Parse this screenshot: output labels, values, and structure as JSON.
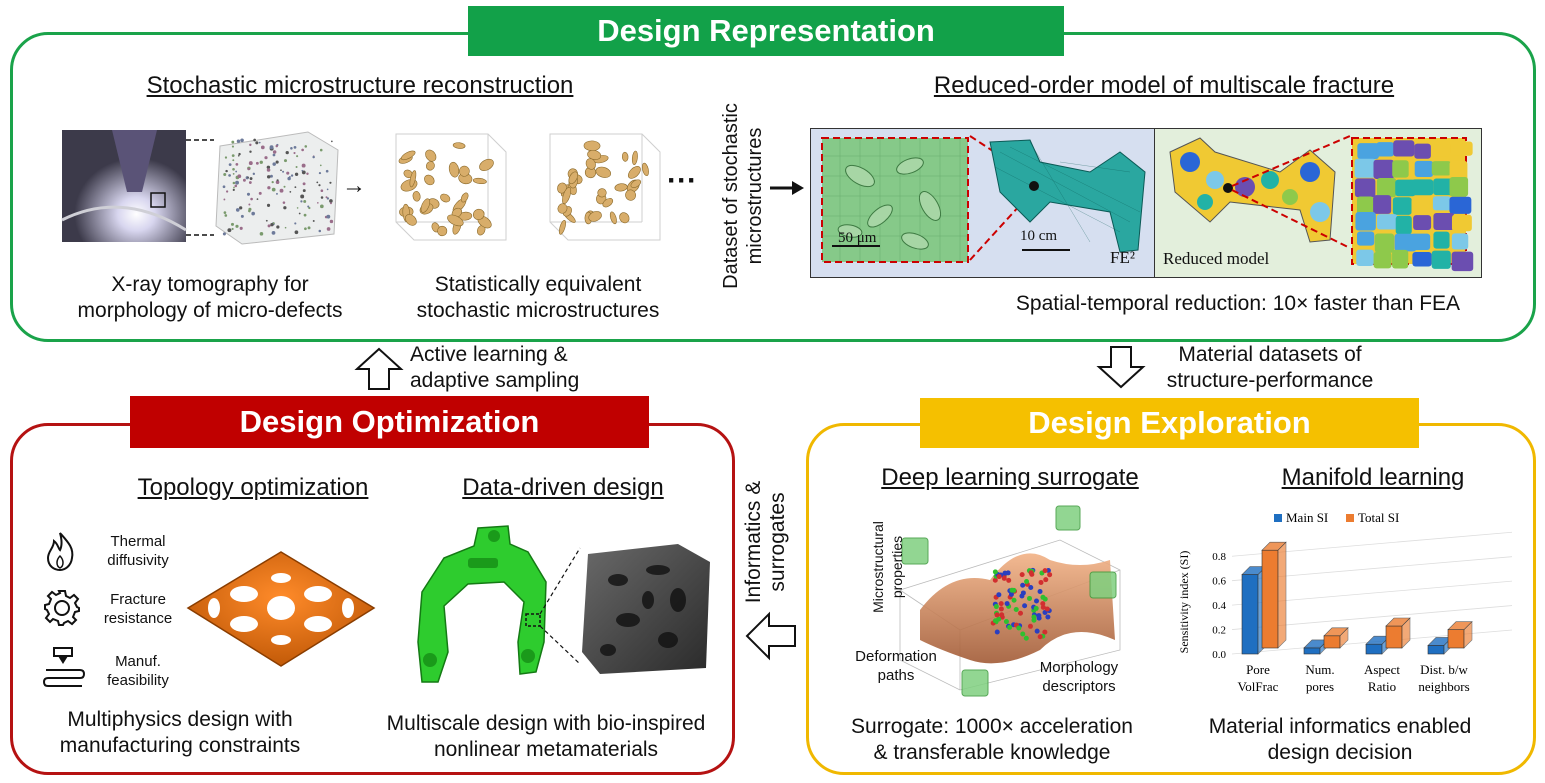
{
  "representation": {
    "title": "Design Representation",
    "stochastic_heading": "Stochastic microstructure reconstruction",
    "xray_caption_line1": "X-ray tomography for",
    "xray_caption_line2": "morphology of micro-defects",
    "stat_caption_line1": "Statistically equivalent",
    "stat_caption_line2": "stochastic microstructures",
    "arrow_symbol": "→",
    "ellipsis": "···",
    "dataset_line1": "Dataset of stochastic",
    "dataset_line2": "microstructures",
    "rom_heading": "Reduced-order model of multiscale fracture",
    "scale_micro": "50 μm",
    "scale_macro": "10 cm",
    "fe2_label": "FE²",
    "reduced_label": "Reduced model",
    "reduction_caption": "Spatial-temporal reduction: 10× faster than FEA"
  },
  "flows": {
    "active_line1": "Active learning &",
    "active_line2": "adaptive sampling",
    "material_line1": "Material datasets of",
    "material_line2": "structure-performance",
    "informatics_line1": "Informatics &",
    "informatics_line2": "surrogates"
  },
  "optimization": {
    "title": "Design Optimization",
    "topology_heading": "Topology optimization",
    "datadriven_heading": "Data-driven design",
    "icon1_line1": "Thermal",
    "icon1_line2": "diffusivity",
    "icon2_line1": "Fracture",
    "icon2_line2": "resistance",
    "icon3_line1": "Manuf.",
    "icon3_line2": "feasibility",
    "multiphysics_line1": "Multiphysics design with",
    "multiphysics_line2": "manufacturing constraints",
    "multiscale_line1": "Multiscale design with bio-inspired",
    "multiscale_line2": "nonlinear metamaterials"
  },
  "exploration": {
    "title": "Design Exploration",
    "deep_heading": "Deep learning surrogate",
    "manifold_heading": "Manifold learning",
    "axis_micro_line1": "Microstructural",
    "axis_micro_line2": "properties",
    "axis_deform_line1": "Deformation",
    "axis_deform_line2": "paths",
    "axis_morph_line1": "Morphology",
    "axis_morph_line2": "descriptors",
    "surrogate_line1": "Surrogate: 1000× acceleration",
    "surrogate_line2": "& transferable knowledge",
    "informatics_line1": "Material informatics enabled",
    "informatics_line2": "design decision"
  },
  "chart_data": {
    "type": "bar",
    "categories": [
      "Pore VolFrac",
      "Num. pores",
      "Aspect Ratio",
      "Dist. b/w neighbors"
    ],
    "category_lines": [
      [
        "Pore",
        "VolFrac"
      ],
      [
        "Num.",
        "pores"
      ],
      [
        "Aspect",
        "Ratio"
      ],
      [
        "Dist. b/w",
        "neighbors"
      ]
    ],
    "series": [
      {
        "name": "Main SI",
        "values": [
          0.65,
          0.05,
          0.08,
          0.07
        ],
        "color": "#1f6fc1"
      },
      {
        "name": "Total SI",
        "values": [
          0.8,
          0.1,
          0.18,
          0.15
        ],
        "color": "#ec7c30"
      }
    ],
    "ylabel": "Sensitivity index (SI)",
    "yticks": [
      "0.0",
      "0.2",
      "0.4",
      "0.6",
      "0.8"
    ],
    "ylim": [
      0,
      0.9
    ],
    "legend": "top"
  }
}
